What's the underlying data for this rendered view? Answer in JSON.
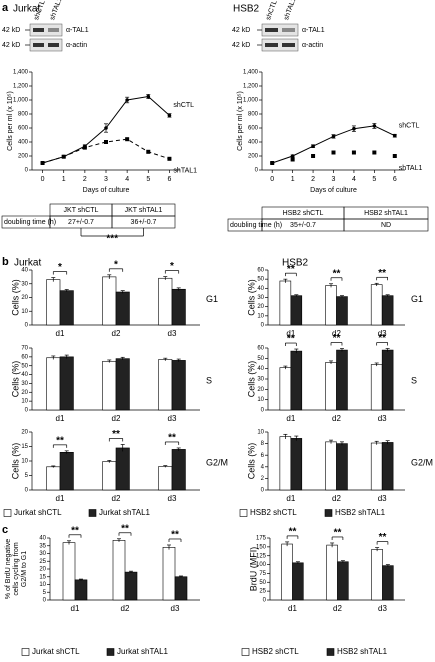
{
  "panel_labels": [
    "a",
    "b",
    "c"
  ],
  "cell_lines": [
    "Jurkat",
    "HSB2"
  ],
  "blots": [
    {
      "lanes": [
        "shCTL",
        "shTAL1"
      ],
      "marker": "42 kD",
      "rows": [
        "α-TAL1",
        "α-actin"
      ]
    },
    {
      "lanes": [
        "shCTL",
        "shTAL1"
      ],
      "marker": "42 kD",
      "rows": [
        "α-TAL1",
        "α-actin"
      ]
    }
  ],
  "tables": [
    {
      "row_label": "doubling time (h)",
      "columns": [
        "JKT shCTL",
        "JKT shTAL1"
      ],
      "values": [
        "27+/-0.7",
        "36+/-0.7"
      ],
      "significance": "***"
    },
    {
      "row_label": "doubling time (h)",
      "columns": [
        "HSB2 shCTL",
        "HSB2 shTAL1"
      ],
      "values": [
        "35+/-0.7",
        "ND"
      ]
    }
  ],
  "chart_data": [
    {
      "type": "line",
      "ylabel": "Cells per ml (x 10⁵)",
      "xlabel": "Days of culture",
      "x": [
        0,
        1,
        2,
        3,
        4,
        5,
        6
      ],
      "xlim": [
        -0.5,
        6.5
      ],
      "xticks": [
        0,
        1,
        2,
        3,
        4,
        5,
        6
      ],
      "ylim": [
        0,
        1400
      ],
      "yticks": [
        0,
        200,
        400,
        600,
        800,
        {
          "value": 1000,
          "label": "1,000"
        },
        {
          "value": 1200,
          "label": "1,200"
        },
        {
          "value": 1400,
          "label": "1,400"
        }
      ],
      "series": [
        {
          "name": "shCTL",
          "color": "#000000",
          "line_style": "solid",
          "marker": "circle",
          "values": [
            100,
            190,
            340,
            600,
            1000,
            1050,
            780
          ],
          "errors": [
            10,
            15,
            20,
            60,
            40,
            30,
            25
          ]
        },
        {
          "name": "shTAL1",
          "color": "#000000",
          "line_style": "dashed",
          "marker": "square",
          "values": [
            100,
            190,
            320,
            400,
            440,
            260,
            160
          ]
        }
      ]
    },
    {
      "type": "line",
      "ylabel": "Cells per ml (x 10⁵)",
      "xlabel": "Days of culture",
      "x": [
        0,
        1,
        2,
        3,
        4,
        5,
        6
      ],
      "xlim": [
        -0.5,
        6.5
      ],
      "xticks": [
        0,
        1,
        2,
        3,
        4,
        5,
        6
      ],
      "ylim": [
        0,
        1400
      ],
      "yticks": [
        0,
        200,
        400,
        600,
        800,
        {
          "value": 1000,
          "label": "1,000"
        },
        {
          "value": 1200,
          "label": "1,200"
        },
        {
          "value": 1400,
          "label": "1,400"
        }
      ],
      "series": [
        {
          "name": "shCTL",
          "color": "#000000",
          "line_style": "solid",
          "marker": "circle",
          "values": [
            100,
            200,
            340,
            480,
            590,
            630,
            490
          ],
          "errors": [
            10,
            15,
            20,
            25,
            40,
            35,
            20
          ]
        },
        {
          "name": "shTAL1",
          "color": "#000000",
          "line_style": "none",
          "marker": "square",
          "values": [
            100,
            150,
            200,
            250,
            250,
            250,
            200
          ]
        }
      ]
    },
    {
      "type": "bar",
      "ylabel": "Cells (%)",
      "annotation": "G1",
      "categories": [
        "d1",
        "d2",
        "d3"
      ],
      "ylim": [
        0,
        40
      ],
      "yticks": [
        0,
        10,
        20,
        30,
        40
      ],
      "significance": [
        "*",
        "*",
        "*"
      ],
      "series": [
        {
          "color": "#ffffff",
          "values": [
            33,
            35,
            34
          ],
          "errors": [
            1.5,
            1.5,
            1.2
          ]
        },
        {
          "color": "#222222",
          "values": [
            25,
            24,
            26
          ],
          "errors": [
            0.8,
            1,
            1
          ]
        }
      ]
    },
    {
      "type": "bar",
      "ylabel": "Cells (%)",
      "annotation": "S",
      "categories": [
        "d1",
        "d2",
        "d3"
      ],
      "ylim": [
        0,
        70
      ],
      "yticks": [
        0,
        10,
        20,
        30,
        40,
        50,
        60,
        70
      ],
      "series": [
        {
          "color": "#ffffff",
          "values": [
            59,
            55,
            57
          ],
          "errors": [
            2,
            1.5,
            1.5
          ]
        },
        {
          "color": "#222222",
          "values": [
            60,
            58,
            56
          ],
          "errors": [
            2,
            1.5,
            1.5
          ]
        }
      ]
    },
    {
      "type": "bar",
      "ylabel": "Cells (%)",
      "annotation": "G2/M",
      "categories": [
        "d1",
        "d2",
        "d3"
      ],
      "ylim": [
        0,
        20
      ],
      "yticks": [
        0,
        5,
        10,
        15,
        20
      ],
      "significance": [
        "**",
        "**",
        "**"
      ],
      "legend": true,
      "series": [
        {
          "name": "Jurkat shCTL",
          "color": "#ffffff",
          "values": [
            8,
            9.8,
            8.1
          ],
          "errors": [
            0.3,
            0.4,
            0.3
          ]
        },
        {
          "name": "Jurkat shTAL1",
          "color": "#222222",
          "values": [
            13,
            14.5,
            14
          ],
          "errors": [
            0.5,
            1.2,
            0.5
          ]
        }
      ]
    },
    {
      "type": "bar",
      "ylabel": "Cells (%)",
      "annotation": "G1",
      "categories": [
        "d1",
        "d2",
        "d3"
      ],
      "ylim": [
        0,
        60
      ],
      "yticks": [
        0,
        10,
        20,
        30,
        40,
        50,
        60
      ],
      "significance": [
        "**",
        "**",
        "**"
      ],
      "series": [
        {
          "color": "#ffffff",
          "values": [
            48,
            43,
            44
          ],
          "errors": [
            2,
            2,
            1.5
          ]
        },
        {
          "color": "#222222",
          "values": [
            32,
            31,
            32
          ],
          "errors": [
            1,
            1,
            1
          ]
        }
      ]
    },
    {
      "type": "bar",
      "ylabel": "Cells (%)",
      "annotation": "S",
      "categories": [
        "d1",
        "d2",
        "d3"
      ],
      "ylim": [
        0,
        60
      ],
      "yticks": [
        0,
        10,
        20,
        30,
        40,
        50,
        60
      ],
      "significance": [
        "**",
        "**",
        "**"
      ],
      "series": [
        {
          "color": "#ffffff",
          "values": [
            41,
            46,
            44
          ],
          "errors": [
            1.5,
            1.5,
            1.5
          ]
        },
        {
          "color": "#222222",
          "values": [
            57,
            58,
            58
          ],
          "errors": [
            2,
            1.5,
            1.5
          ]
        }
      ]
    },
    {
      "type": "bar",
      "ylabel": "Cells (%)",
      "annotation": "G2/M",
      "categories": [
        "d1",
        "d2",
        "d3"
      ],
      "ylim": [
        0,
        10
      ],
      "yticks": [
        0,
        2,
        4,
        6,
        8,
        10
      ],
      "legend": true,
      "series": [
        {
          "name": "HSB2 shCTL",
          "color": "#ffffff",
          "values": [
            9.2,
            8.3,
            8.1
          ],
          "errors": [
            0.4,
            0.3,
            0.3
          ]
        },
        {
          "name": "HSB2 shTAL1",
          "color": "#222222",
          "values": [
            8.9,
            8.0,
            8.2
          ],
          "errors": [
            0.4,
            0.3,
            0.3
          ]
        }
      ]
    },
    {
      "type": "bar",
      "ylabel_lines": [
        "% of BrdU negative",
        "cells cycling from",
        "G2/M to G1"
      ],
      "categories": [
        "d1",
        "d2",
        "d3"
      ],
      "ylim": [
        0,
        40
      ],
      "yticks": [
        0,
        5,
        10,
        15,
        20,
        25,
        30,
        35,
        40
      ],
      "significance": [
        "**",
        "**",
        "**"
      ],
      "legend": true,
      "series": [
        {
          "name": "Jurkat shCTL",
          "color": "#ffffff",
          "values": [
            37,
            38.5,
            34
          ],
          "errors": [
            1.2,
            1,
            1.5
          ]
        },
        {
          "name": "Jurkat shTAL1",
          "color": "#222222",
          "values": [
            13,
            18,
            15
          ],
          "errors": [
            0.5,
            0.6,
            0.5
          ]
        }
      ]
    },
    {
      "type": "bar",
      "ylabel": "BrdU (MFI)",
      "categories": [
        "d1",
        "d2",
        "d3"
      ],
      "ylim": [
        0,
        175
      ],
      "yticks": [
        0,
        25,
        50,
        75,
        100,
        125,
        150,
        175
      ],
      "significance": [
        "**",
        "**",
        "**"
      ],
      "legend": true,
      "series": [
        {
          "name": "HSB2 shCTL",
          "color": "#ffffff",
          "values": [
            158,
            155,
            143
          ],
          "errors": [
            6,
            6,
            5
          ]
        },
        {
          "name": "HSB2 shTAL1",
          "color": "#222222",
          "values": [
            105,
            108,
            97
          ],
          "errors": [
            3,
            3,
            3
          ]
        }
      ]
    }
  ]
}
